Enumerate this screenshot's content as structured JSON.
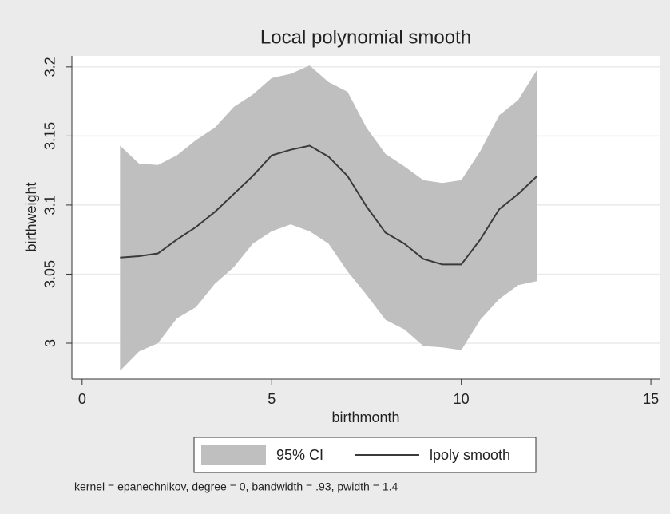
{
  "chart_data": {
    "type": "line",
    "title": "Local polynomial smooth",
    "x_label": "birthmonth",
    "y_label": "birthweight",
    "note": "kernel = epanechnikov, degree = 0, bandwidth = .93, pwidth = 1.4",
    "x": [
      1,
      1.5,
      2,
      2.5,
      3,
      3.5,
      4,
      4.5,
      5,
      5.5,
      6,
      6.5,
      7,
      7.5,
      8,
      8.5,
      9,
      9.5,
      10,
      10.5,
      11,
      11.5,
      12
    ],
    "series": [
      {
        "name": "95% CI",
        "color": "#bfbfbf",
        "upper": [
          3.143,
          3.13,
          3.129,
          3.136,
          3.147,
          3.156,
          3.171,
          3.18,
          3.192,
          3.195,
          3.201,
          3.189,
          3.182,
          3.156,
          3.137,
          3.128,
          3.118,
          3.116,
          3.118,
          3.139,
          3.165,
          3.176,
          3.198
        ],
        "lower": [
          2.98,
          2.994,
          3.0,
          3.018,
          3.026,
          3.043,
          3.055,
          3.072,
          3.081,
          3.086,
          3.081,
          3.072,
          3.052,
          3.035,
          3.017,
          3.01,
          2.998,
          2.997,
          2.995,
          3.017,
          3.032,
          3.042,
          3.045
        ]
      },
      {
        "name": "lpoly smooth",
        "color": "#3a3a3a",
        "values": [
          3.062,
          3.063,
          3.065,
          3.075,
          3.084,
          3.095,
          3.108,
          3.121,
          3.136,
          3.14,
          3.143,
          3.135,
          3.121,
          3.099,
          3.08,
          3.072,
          3.061,
          3.057,
          3.057,
          3.075,
          3.097,
          3.108,
          3.121
        ]
      }
    ],
    "xlim": [
      -0.27,
      15.23
    ],
    "ylim": [
      2.974,
      3.208
    ],
    "xticks": [
      0,
      5,
      10,
      15
    ],
    "yticks": [
      3,
      3.05,
      3.1,
      3.15,
      3.2
    ],
    "grid": true,
    "legend": "bottom"
  }
}
